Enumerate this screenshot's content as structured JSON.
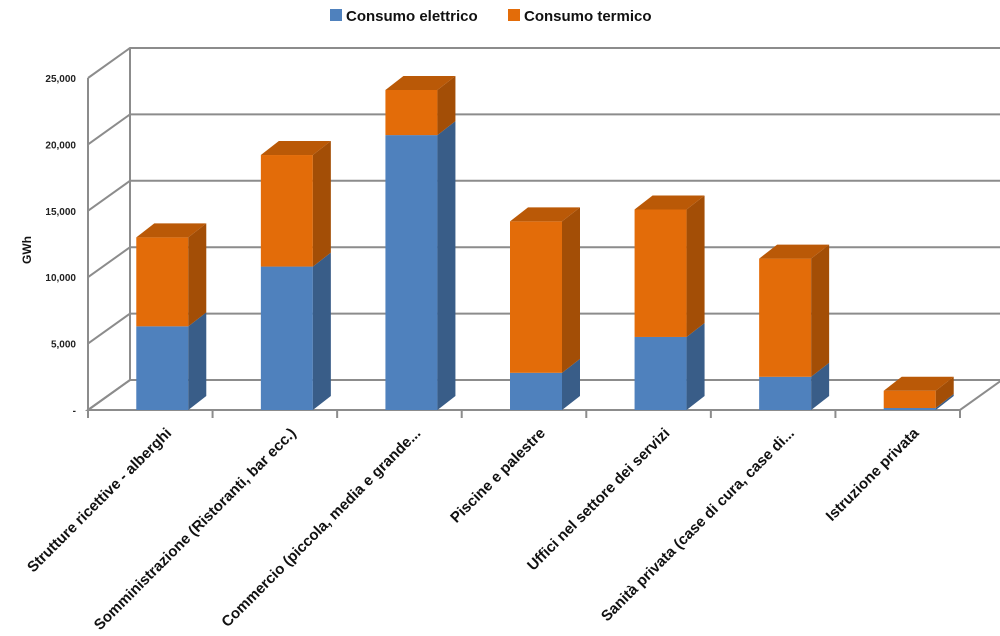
{
  "chart_data": {
    "type": "bar",
    "stacked": true,
    "three_d": true,
    "ylabel": "GWh",
    "ylim": [
      0,
      25000
    ],
    "y_ticks": [
      0,
      5000,
      10000,
      15000,
      20000,
      25000
    ],
    "y_tick_labels": [
      "-",
      "5,000",
      "10,000",
      "15,000",
      "20,000",
      "25,000"
    ],
    "grid": true,
    "legend_position": "top",
    "categories": [
      "Strutture ricettive - alberghi",
      "Somministrazione (Ristoranti, bar ecc.)",
      "Commercio (piccola, media e grande...",
      "Piscine e palestre",
      "Uffici nel settore dei servizi",
      "Sanità privata (case di cura, case di...",
      "Istruzione privata"
    ],
    "series": [
      {
        "name": "Consumo elettrico",
        "color": "#4f81bd",
        "values": [
          6300,
          10800,
          20700,
          2800,
          5500,
          2500,
          150
        ]
      },
      {
        "name": "Consumo termico",
        "color": "#e36c09",
        "values": [
          6700,
          8400,
          3400,
          11400,
          9600,
          8900,
          1300
        ]
      }
    ]
  }
}
